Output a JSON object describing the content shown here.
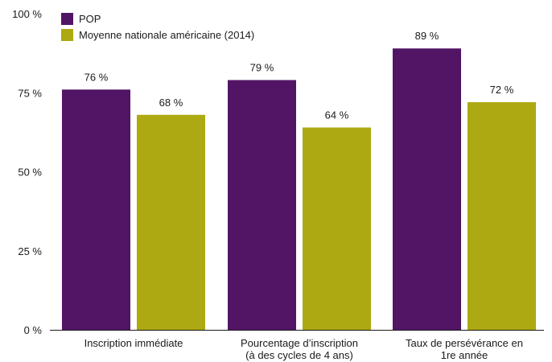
{
  "chart_data": {
    "type": "bar",
    "title": "",
    "xlabel": "",
    "ylabel": "",
    "ylim": [
      0,
      100
    ],
    "y_ticks": [
      0,
      25,
      50,
      75,
      100
    ],
    "y_tick_labels": [
      "0 %",
      "25 %",
      "50 %",
      "75 %",
      "100 %"
    ],
    "grid": false,
    "legend_position": "top-left",
    "categories": [
      [
        "Inscription immédiate"
      ],
      [
        "Pourcentage d’inscription",
        "(à des cycles de 4 ans)"
      ],
      [
        "Taux de persévérance en",
        "1re année"
      ]
    ],
    "series": [
      {
        "name": "POP",
        "color": "#521566",
        "values": [
          76,
          79,
          89
        ],
        "labels": [
          "76 %",
          "79 %",
          "89 %"
        ]
      },
      {
        "name": "Moyenne nationale américaine (2014)",
        "color": "#ada912",
        "values": [
          68,
          64,
          72
        ],
        "labels": [
          "68 %",
          "64 %",
          "72 %"
        ]
      }
    ]
  }
}
